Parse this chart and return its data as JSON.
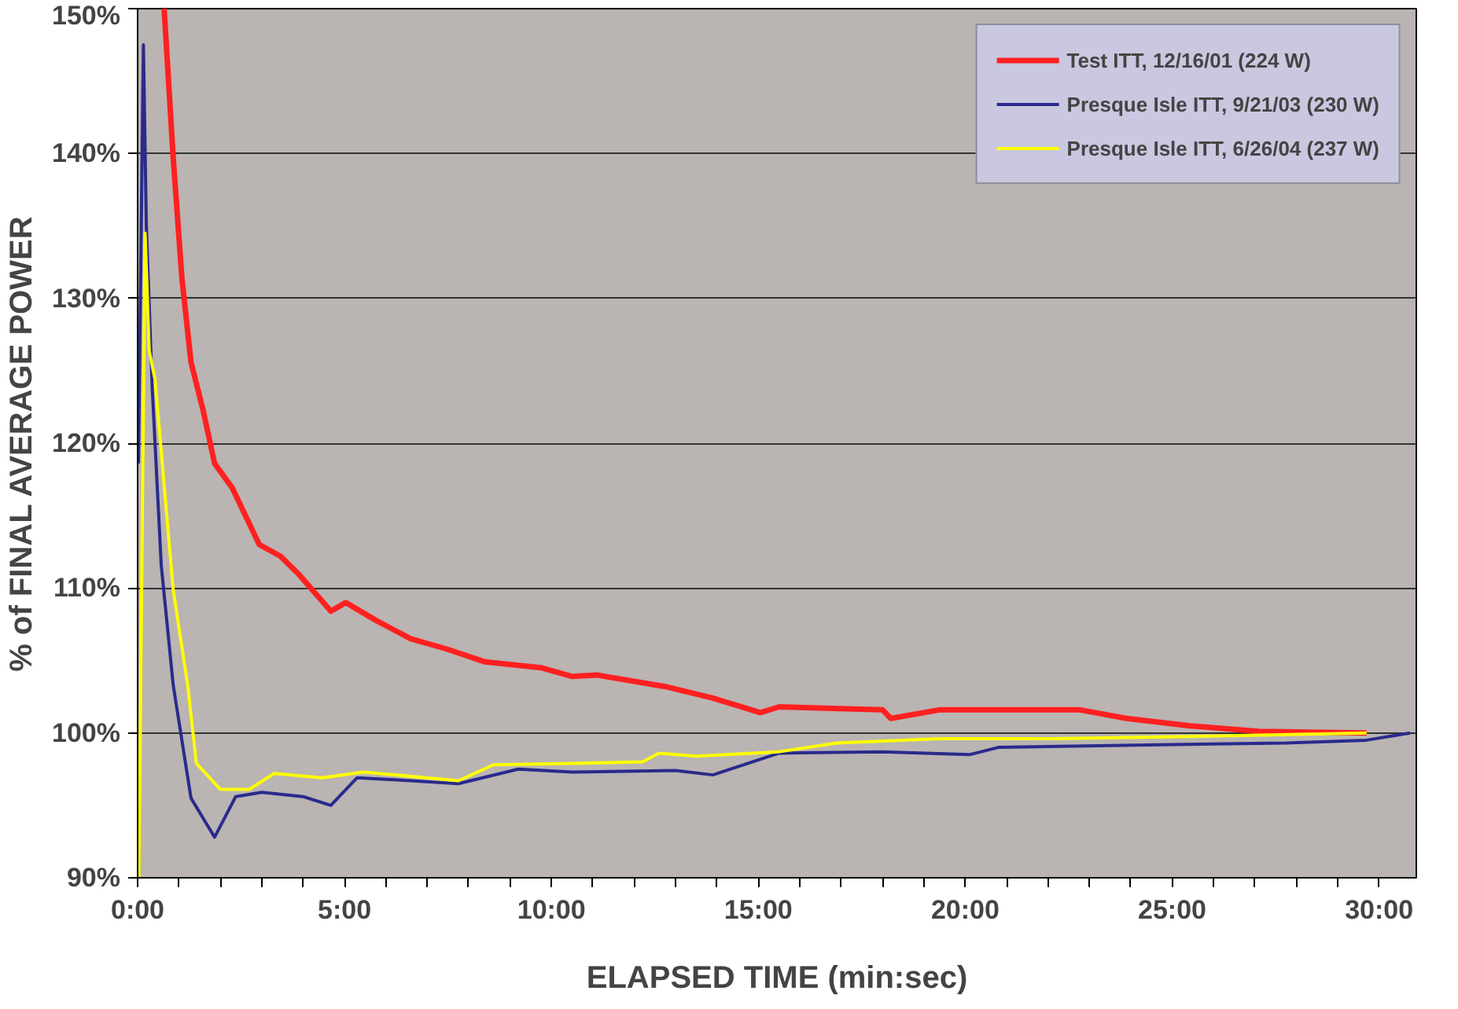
{
  "chart_data": {
    "type": "line",
    "xlabel": "ELAPSED TIME (min:sec)",
    "ylabel": "% of FINAL AVERAGE POWER",
    "xlim": [
      0,
      30.9
    ],
    "ylim": [
      90,
      150
    ],
    "xticks": [
      {
        "value": 0,
        "label": "0:00"
      },
      {
        "value": 1,
        "label": null
      },
      {
        "value": 2,
        "label": null
      },
      {
        "value": 3,
        "label": null
      },
      {
        "value": 4,
        "label": null
      },
      {
        "value": 5,
        "label": "5:00"
      },
      {
        "value": 6,
        "label": null
      },
      {
        "value": 7,
        "label": null
      },
      {
        "value": 8,
        "label": null
      },
      {
        "value": 9,
        "label": null
      },
      {
        "value": 10,
        "label": "10:00"
      },
      {
        "value": 11,
        "label": null
      },
      {
        "value": 12,
        "label": null
      },
      {
        "value": 13,
        "label": null
      },
      {
        "value": 14,
        "label": null
      },
      {
        "value": 15,
        "label": "15:00"
      },
      {
        "value": 16,
        "label": null
      },
      {
        "value": 17,
        "label": null
      },
      {
        "value": 18,
        "label": null
      },
      {
        "value": 19,
        "label": null
      },
      {
        "value": 20,
        "label": "20:00"
      },
      {
        "value": 21,
        "label": null
      },
      {
        "value": 22,
        "label": null
      },
      {
        "value": 23,
        "label": null
      },
      {
        "value": 24,
        "label": null
      },
      {
        "value": 25,
        "label": "25:00"
      },
      {
        "value": 26,
        "label": null
      },
      {
        "value": 27,
        "label": null
      },
      {
        "value": 28,
        "label": null
      },
      {
        "value": 29,
        "label": null
      },
      {
        "value": 30,
        "label": "30:00"
      }
    ],
    "yticks": [
      {
        "value": 90,
        "label": "90%"
      },
      {
        "value": 100,
        "label": "100%"
      },
      {
        "value": 110,
        "label": "110%"
      },
      {
        "value": 120,
        "label": "120%"
      },
      {
        "value": 130,
        "label": "130%"
      },
      {
        "value": 140,
        "label": "140%"
      },
      {
        "value": 150,
        "label": "150%"
      }
    ],
    "grid": "y",
    "legend": "top right",
    "marker": "none",
    "line_style": "solid",
    "series": [
      {
        "name": "Test ITT, 12/16/01 (224 W)",
        "color": "#ff2020",
        "x": [
          0.64,
          0.86,
          1.07,
          1.29,
          1.58,
          1.86,
          2.29,
          2.94,
          3.45,
          3.88,
          4.67,
          5.03,
          5.74,
          6.6,
          7.46,
          8.4,
          9.75,
          10.5,
          11.1,
          12.75,
          13.9,
          15.05,
          15.5,
          18.0,
          18.2,
          19.4,
          22.75,
          23.9,
          25.4,
          27.1,
          29.7
        ],
        "values": [
          150,
          139.7,
          131.4,
          125.6,
          122.3,
          118.6,
          116.9,
          113.0,
          112.2,
          111.0,
          108.4,
          109.0,
          107.8,
          106.5,
          105.8,
          104.9,
          104.5,
          103.9,
          104.0,
          103.2,
          102.4,
          101.4,
          101.8,
          101.6,
          101.0,
          101.6,
          101.6,
          101.0,
          100.5,
          100.1,
          100.0
        ]
      },
      {
        "name": "Presque Isle ITT, 9/21/03 (230 W)",
        "color": "#2a2a8c",
        "x": [
          0.02,
          0.14,
          0.21,
          0.35,
          0.57,
          0.86,
          1.29,
          1.86,
          2.37,
          3.0,
          4.0,
          4.67,
          5.3,
          6.6,
          7.75,
          9.2,
          10.5,
          13.0,
          13.9,
          15.5,
          18.0,
          20.1,
          20.8,
          25.0,
          27.75,
          29.7,
          30.75
        ],
        "values": [
          118.6,
          147.5,
          135.1,
          124.0,
          111.6,
          103.3,
          95.5,
          92.8,
          95.6,
          95.9,
          95.6,
          95.0,
          96.9,
          96.7,
          96.5,
          97.5,
          97.3,
          97.4,
          97.1,
          98.6,
          98.7,
          98.5,
          99.0,
          99.2,
          99.3,
          99.5,
          100.0
        ]
      },
      {
        "name": "Presque Isle ITT, 6/26/04 (237 W)",
        "color": "#ffff00",
        "x": [
          0.03,
          0.18,
          0.28,
          0.42,
          0.86,
          1.21,
          1.42,
          2.0,
          2.7,
          3.3,
          4.46,
          5.46,
          7.75,
          8.6,
          10.5,
          12.2,
          12.6,
          13.5,
          15.5,
          16.9,
          19.4,
          22.2,
          26.4,
          29.7
        ],
        "values": [
          90,
          134.5,
          126.4,
          124.4,
          109.9,
          103.3,
          97.9,
          96.1,
          96.1,
          97.2,
          96.9,
          97.3,
          96.7,
          97.8,
          97.9,
          98.0,
          98.6,
          98.4,
          98.7,
          99.3,
          99.6,
          99.6,
          99.8,
          100.0
        ]
      }
    ]
  }
}
